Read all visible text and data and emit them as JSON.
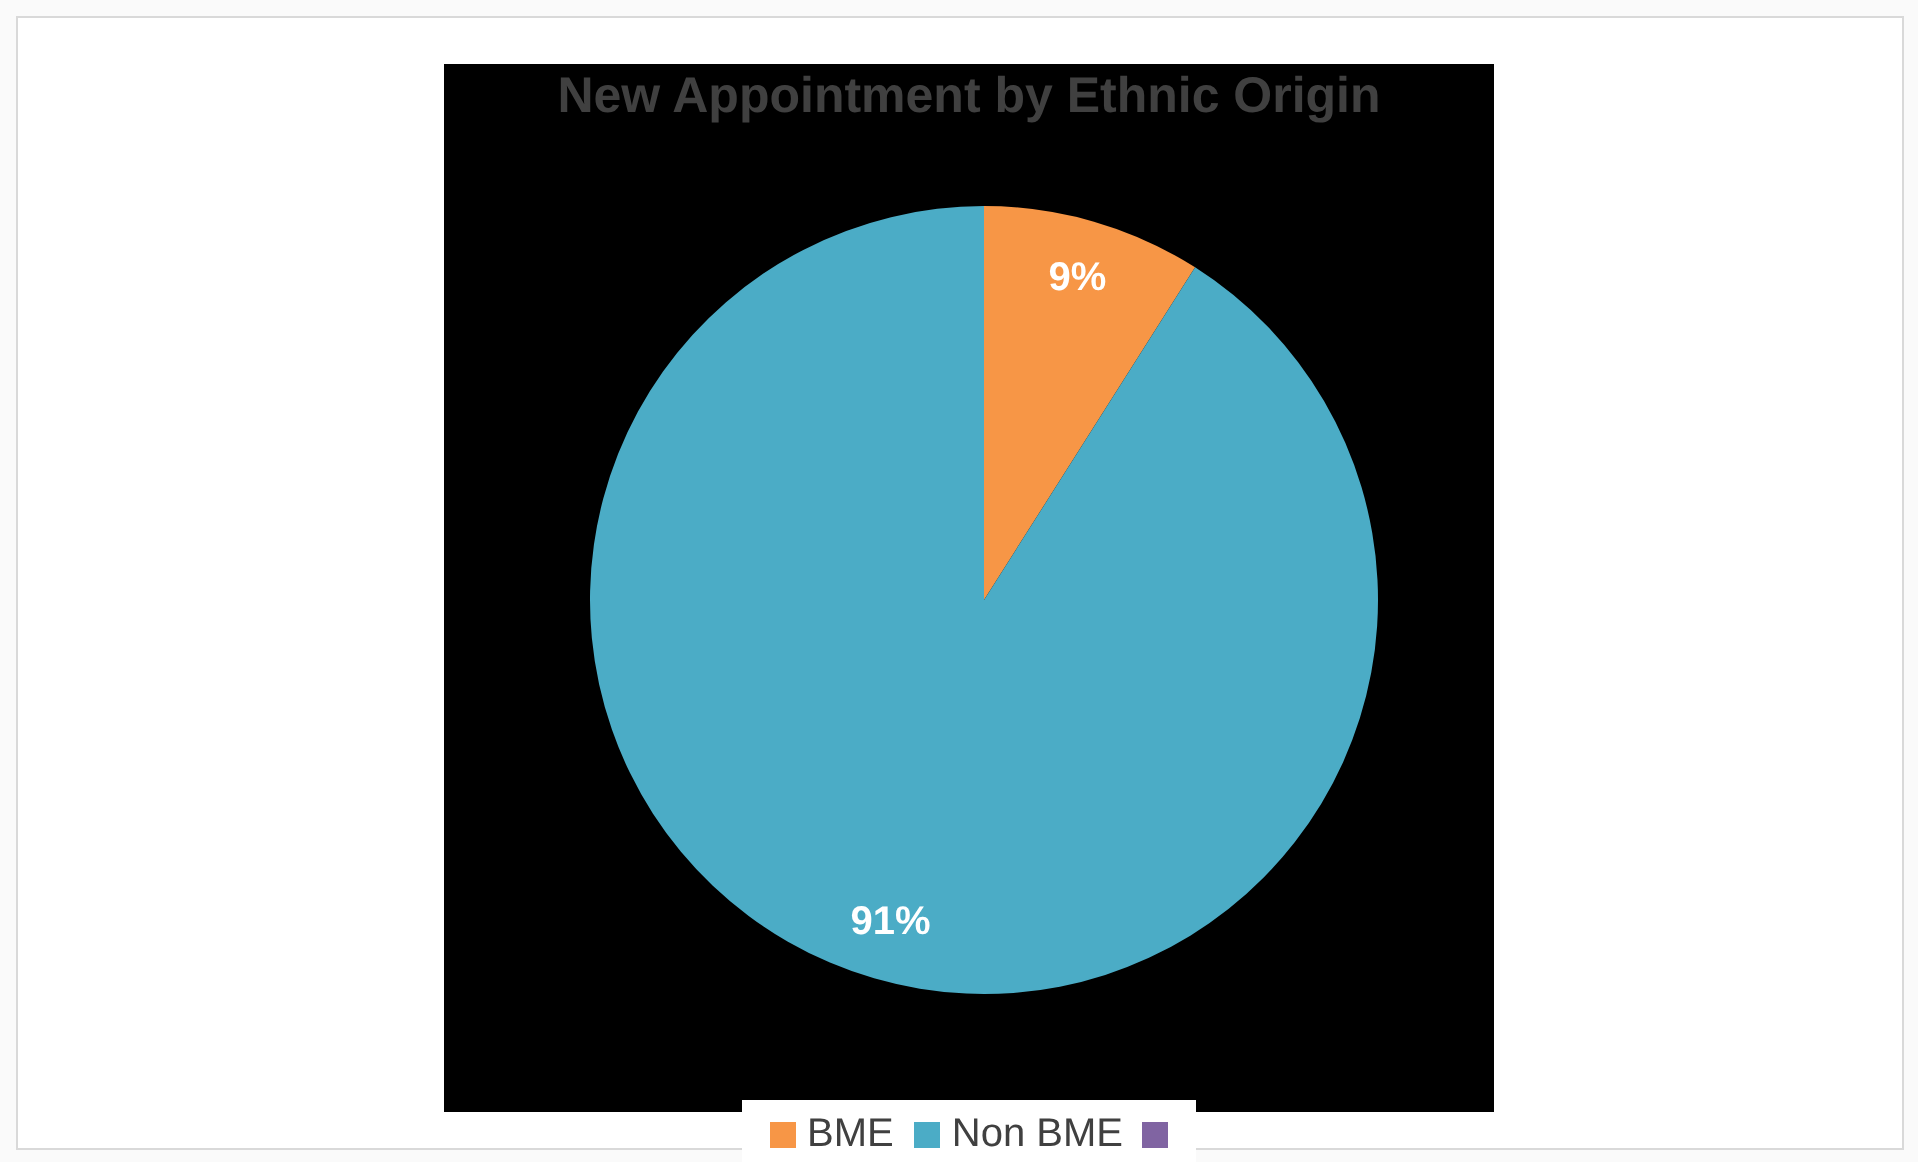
{
  "chart_data": {
    "type": "pie",
    "title": "New Appointment by Ethnic Origin",
    "categories": [
      "BME",
      "Non BME",
      null
    ],
    "values": [
      9,
      91,
      0
    ],
    "colors": [
      "#f79646",
      "#4bacc6",
      "#8064a2"
    ],
    "value_labels": [
      "9%",
      "91%",
      null
    ],
    "legend": "bottom"
  }
}
